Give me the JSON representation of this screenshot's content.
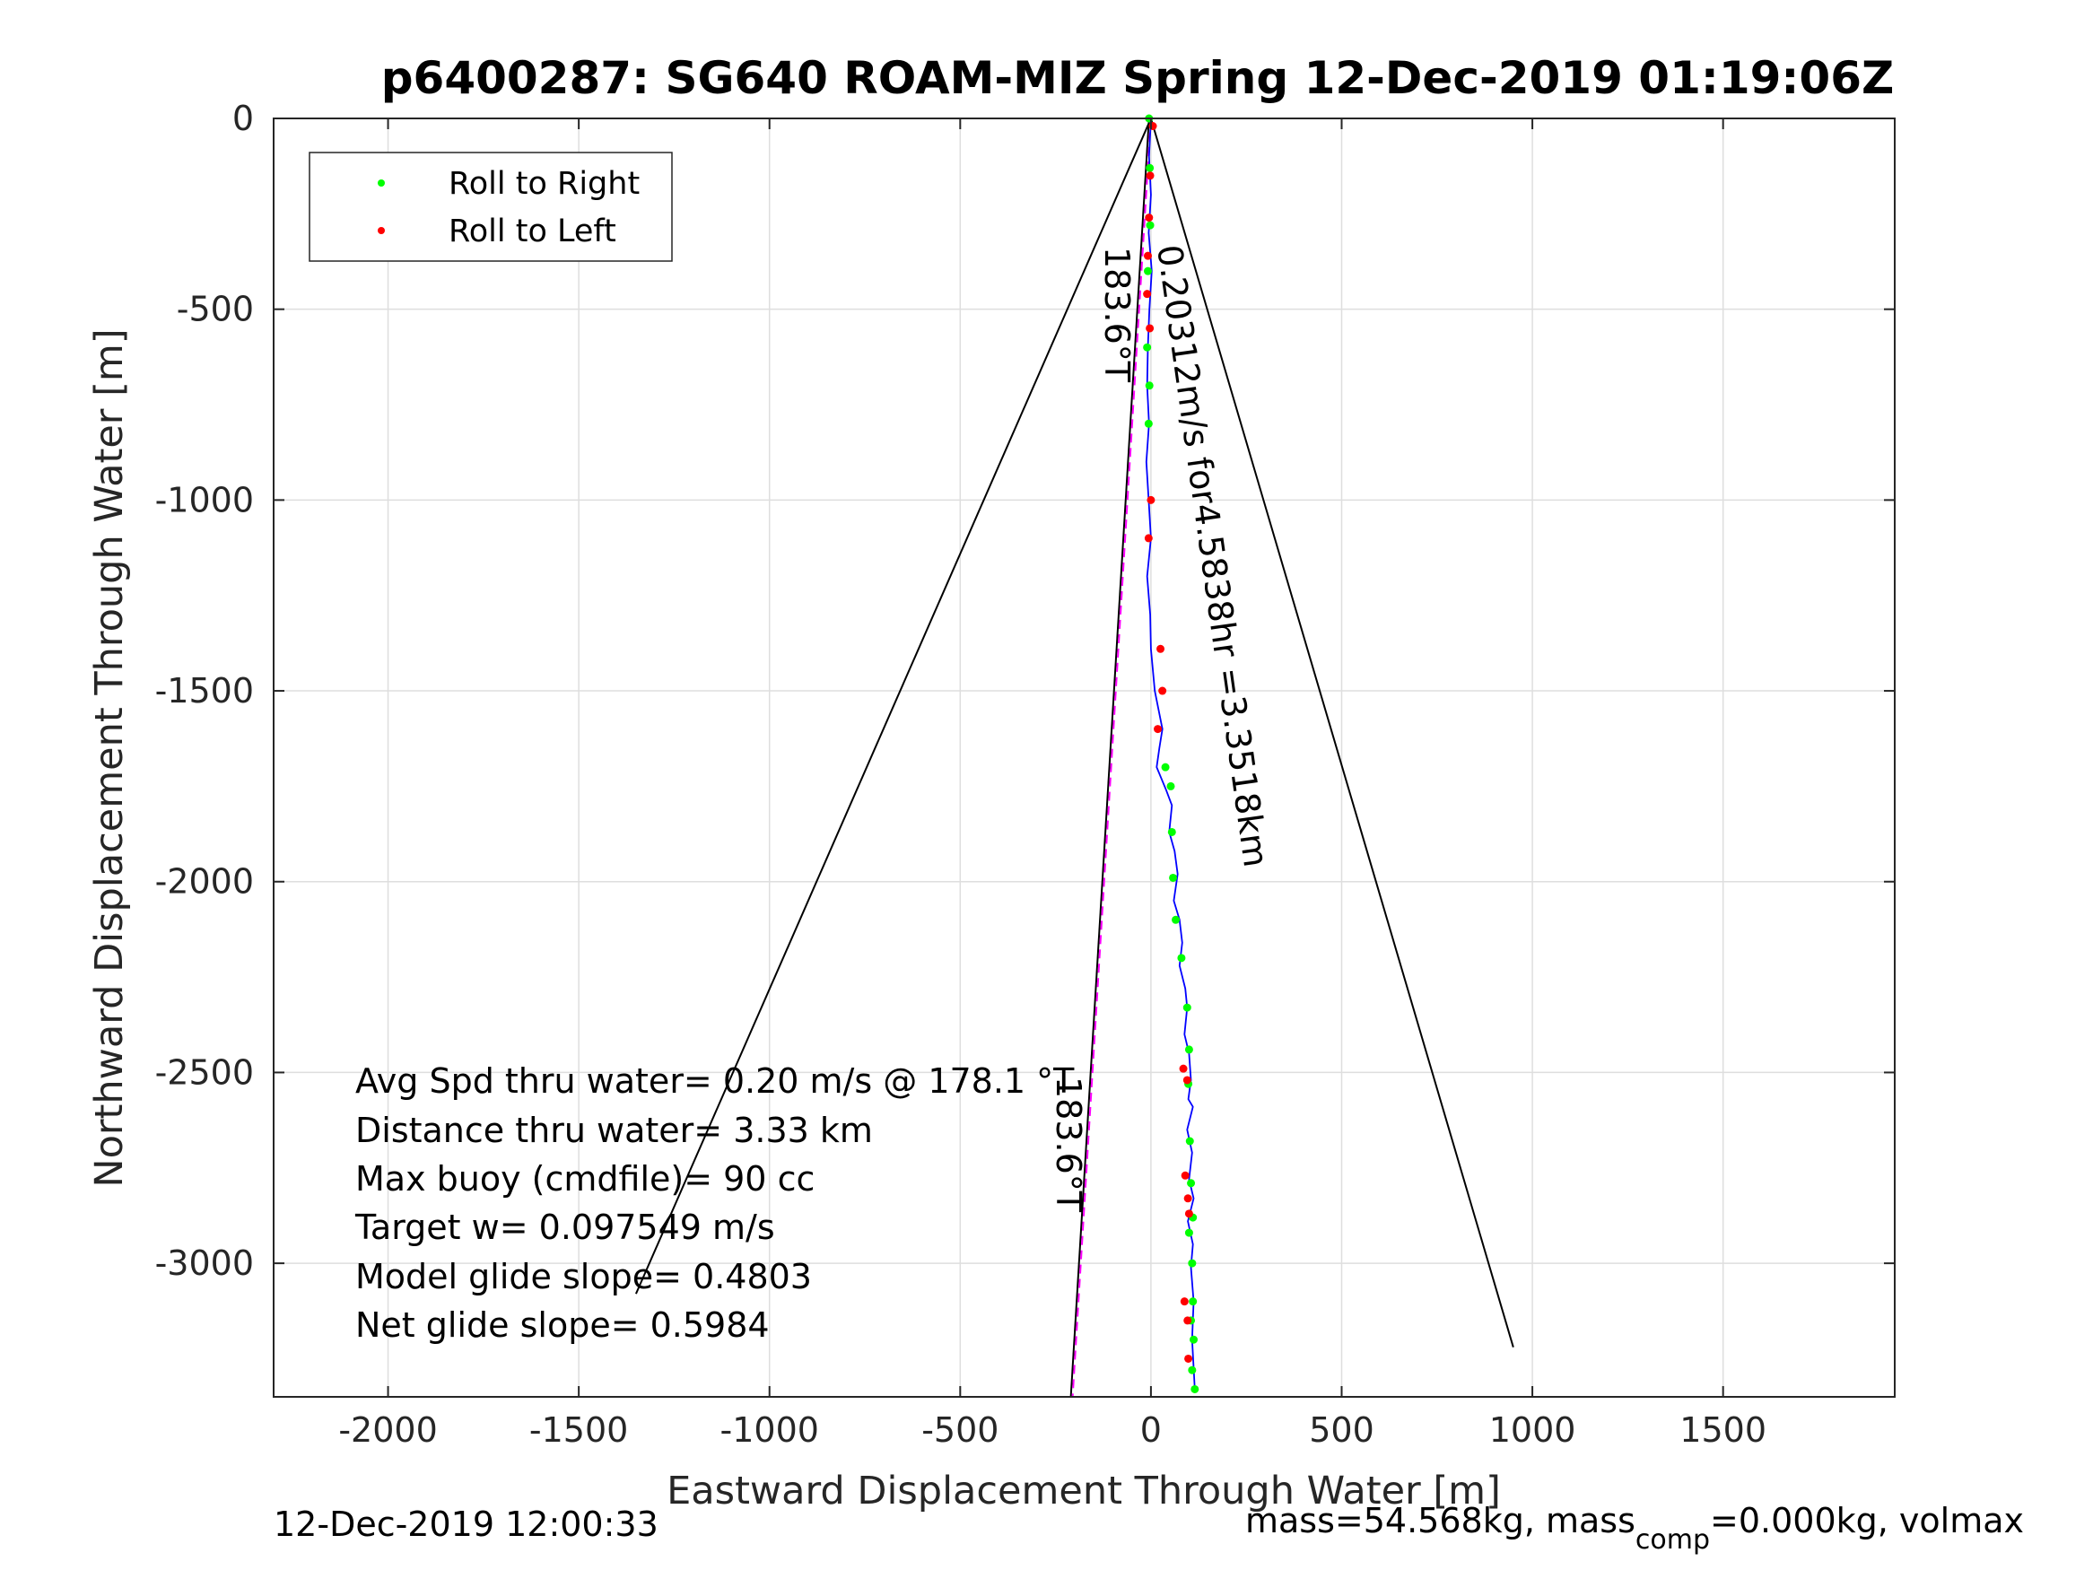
{
  "chart_data": {
    "type": "scatter",
    "title": "p6400287: SG640 ROAM-MIZ Spring 12-Dec-2019 01:19:06Z",
    "xlabel": "Eastward Displacement Through Water [m]",
    "ylabel": "Northward Displacement Through Water [m]",
    "xlim": [
      -2300,
      1950
    ],
    "ylim": [
      -3350,
      0
    ],
    "xticks": [
      -2000,
      -1500,
      -1000,
      -500,
      0,
      500,
      1000,
      1500
    ],
    "yticks": [
      0,
      -500,
      -1000,
      -1500,
      -2000,
      -2500,
      -3000
    ],
    "grid": true,
    "legend": {
      "placement": "top-left",
      "entries": [
        {
          "label": "Roll to Right",
          "color": "#00ff00"
        },
        {
          "label": "Roll to Left",
          "color": "#ff0000"
        }
      ]
    },
    "cone": {
      "apex": [
        0,
        0
      ],
      "left_end": [
        -1350,
        -3080
      ],
      "right_end": [
        950,
        -3220
      ],
      "color": "#000000"
    },
    "course_line": {
      "from": [
        -5,
        0
      ],
      "to": [
        -210,
        -3350
      ],
      "color": "#ff00ff"
    },
    "track": {
      "color": "#0000ff",
      "x": [
        0,
        -5,
        0,
        -6,
        2,
        -4,
        -8,
        -10,
        -5,
        -12,
        -6,
        0,
        -10,
        -2,
        0,
        10,
        30,
        22,
        15,
        40,
        55,
        48,
        62,
        70,
        60,
        75,
        82,
        75,
        90,
        95,
        88,
        100,
        105,
        98,
        110,
        95,
        108,
        100,
        112,
        97,
        110,
        105,
        112,
        108,
        115
      ],
      "y": [
        0,
        -100,
        -200,
        -300,
        -400,
        -500,
        -600,
        -700,
        -800,
        -900,
        -1000,
        -1100,
        -1200,
        -1300,
        -1390,
        -1500,
        -1600,
        -1650,
        -1700,
        -1760,
        -1800,
        -1870,
        -1920,
        -1980,
        -2050,
        -2100,
        -2160,
        -2220,
        -2280,
        -2330,
        -2400,
        -2450,
        -2520,
        -2570,
        -2590,
        -2650,
        -2710,
        -2780,
        -2830,
        -2890,
        -2950,
        -3010,
        -3100,
        -3200,
        -3330
      ]
    },
    "roll_right": {
      "color": "#00ff00",
      "x": [
        -5,
        -3,
        -2,
        -8,
        -10,
        -4,
        -6,
        38,
        52,
        55,
        58,
        65,
        80,
        95,
        100,
        98,
        102,
        105,
        110,
        100,
        108,
        110,
        105,
        112,
        108,
        115
      ],
      "y": [
        0,
        -130,
        -280,
        -400,
        -600,
        -700,
        -800,
        -1700,
        -1750,
        -1870,
        -1990,
        -2100,
        -2200,
        -2330,
        -2440,
        -2530,
        -2680,
        -2790,
        -2880,
        -2920,
        -3000,
        -3100,
        -3150,
        -3200,
        -3280,
        -3330
      ]
    },
    "roll_left": {
      "color": "#ff0000",
      "x": [
        5,
        -2,
        -5,
        -8,
        -10,
        -3,
        0,
        -6,
        25,
        30,
        18,
        85,
        95,
        90,
        97,
        100,
        88,
        96,
        98
      ],
      "y": [
        -20,
        -150,
        -260,
        -360,
        -460,
        -550,
        -1000,
        -1100,
        -1390,
        -1500,
        -1600,
        -2490,
        -2520,
        -2770,
        -2830,
        -2870,
        -3100,
        -3150,
        -3250
      ]
    },
    "annotations": [
      "183.6°T",
      "0.20312m/s for4.5838hr =3.3518km",
      "183.6°T"
    ],
    "stats": [
      "Avg Spd thru water=  0.20 m/s @ 178.1  °T",
      "Distance thru water=  3.33 km",
      "Max buoy (cmdfile)= 90 cc",
      "Target w= 0.097549 m/s",
      "Model glide slope= 0.4803",
      "Net glide slope= 0.5984"
    ],
    "footer_left": "12-Dec-2019 12:00:33",
    "footer_right_prefix": "mass=54.568kg, mass",
    "footer_right_sub": "comp",
    "footer_right_suffix": "=0.000kg, volmax"
  }
}
